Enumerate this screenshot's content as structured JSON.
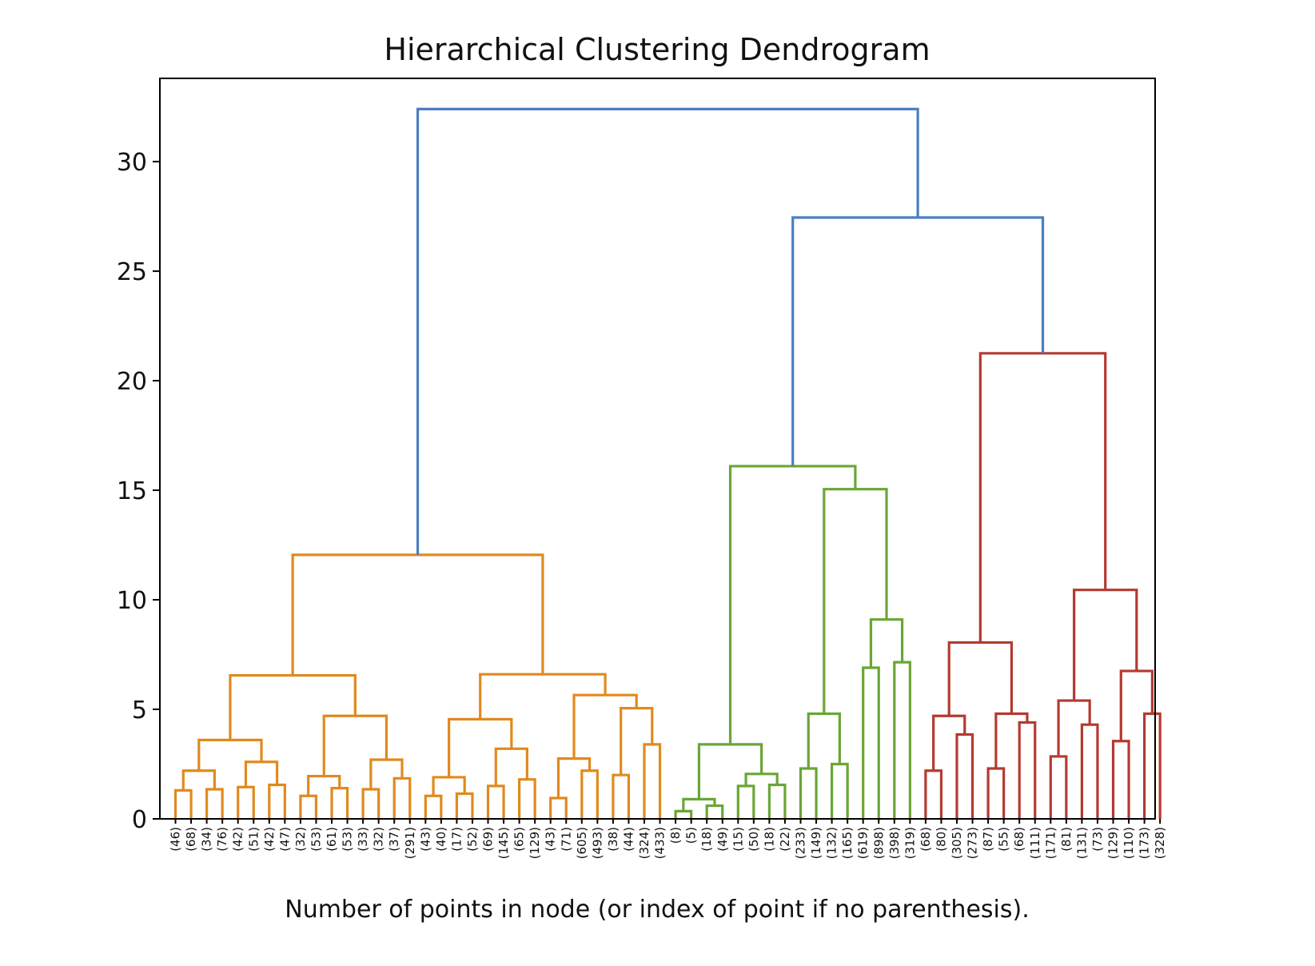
{
  "chart_data": {
    "type": "dendrogram",
    "title": "Hierarchical Clustering Dendrogram",
    "xlabel": "Number of points in node (or index of point if no parenthesis).",
    "ylabel": "",
    "ylim": [
      0,
      33.8
    ],
    "yticks": [
      0,
      5,
      10,
      15,
      20,
      25,
      30
    ],
    "grid": false,
    "colors": {
      "above_threshold": "#4c7ebf",
      "cluster_orange": "#e08a1e",
      "cluster_green": "#6aa635",
      "cluster_red": "#b43a30"
    },
    "leaves": [
      "(46)",
      "(68)",
      "(34)",
      "(76)",
      "(42)",
      "(51)",
      "(42)",
      "(47)",
      "(32)",
      "(53)",
      "(61)",
      "(53)",
      "(33)",
      "(32)",
      "(37)",
      "(291)",
      "(43)",
      "(40)",
      "(17)",
      "(52)",
      "(69)",
      "(145)",
      "(65)",
      "(129)",
      "(43)",
      "(71)",
      "(605)",
      "(493)",
      "(38)",
      "(44)",
      "(324)",
      "(433)",
      "(8)",
      "(5)",
      "(18)",
      "(49)",
      "(15)",
      "(50)",
      "(18)",
      "(22)",
      "(233)",
      "(149)",
      "(132)",
      "(165)",
      "(619)",
      "(898)",
      "(398)",
      "(319)",
      "(68)",
      "(80)",
      "(305)",
      "(273)",
      "(87)",
      "(55)",
      "(68)",
      "(111)",
      "(171)",
      "(81)",
      "(131)",
      "(73)",
      "(129)",
      "(110)",
      "(173)",
      "(328)"
    ],
    "links": [
      {
        "name": "m1",
        "a": "L0",
        "b": "L1",
        "h": 1.3,
        "c": "cluster_orange"
      },
      {
        "name": "m2",
        "a": "L2",
        "b": "L3",
        "h": 1.35,
        "c": "cluster_orange"
      },
      {
        "name": "m3",
        "a": "m1",
        "b": "m2",
        "h": 2.2,
        "c": "cluster_orange"
      },
      {
        "name": "m4",
        "a": "L4",
        "b": "L5",
        "h": 1.45,
        "c": "cluster_orange"
      },
      {
        "name": "m5",
        "a": "L6",
        "b": "L7",
        "h": 1.55,
        "c": "cluster_orange"
      },
      {
        "name": "m6",
        "a": "m4",
        "b": "m5",
        "h": 2.6,
        "c": "cluster_orange"
      },
      {
        "name": "m7",
        "a": "m3",
        "b": "m6",
        "h": 3.6,
        "c": "cluster_orange"
      },
      {
        "name": "m8",
        "a": "L8",
        "b": "L9",
        "h": 1.05,
        "c": "cluster_orange"
      },
      {
        "name": "m9",
        "a": "L10",
        "b": "L11",
        "h": 1.4,
        "c": "cluster_orange"
      },
      {
        "name": "m10",
        "a": "m8",
        "b": "m9",
        "h": 1.95,
        "c": "cluster_orange"
      },
      {
        "name": "m11",
        "a": "L12",
        "b": "L13",
        "h": 1.35,
        "c": "cluster_orange"
      },
      {
        "name": "m12",
        "a": "L14",
        "b": "L15",
        "h": 1.85,
        "c": "cluster_orange"
      },
      {
        "name": "m13",
        "a": "m11",
        "b": "m12",
        "h": 2.7,
        "c": "cluster_orange"
      },
      {
        "name": "m14",
        "a": "m10",
        "b": "m13",
        "h": 4.7,
        "c": "cluster_orange"
      },
      {
        "name": "m15",
        "a": "m7",
        "b": "m14",
        "h": 6.55,
        "c": "cluster_orange"
      },
      {
        "name": "m16",
        "a": "L16",
        "b": "L17",
        "h": 1.05,
        "c": "cluster_orange"
      },
      {
        "name": "m17",
        "a": "L18",
        "b": "L19",
        "h": 1.15,
        "c": "cluster_orange"
      },
      {
        "name": "m18",
        "a": "m16",
        "b": "m17",
        "h": 1.9,
        "c": "cluster_orange"
      },
      {
        "name": "m19",
        "a": "L20",
        "b": "L21",
        "h": 1.5,
        "c": "cluster_orange"
      },
      {
        "name": "m20",
        "a": "L22",
        "b": "L23",
        "h": 1.8,
        "c": "cluster_orange"
      },
      {
        "name": "m21",
        "a": "m19",
        "b": "m20",
        "h": 3.2,
        "c": "cluster_orange"
      },
      {
        "name": "m22",
        "a": "m18",
        "b": "m21",
        "h": 4.55,
        "c": "cluster_orange"
      },
      {
        "name": "m23",
        "a": "L24",
        "b": "L25",
        "h": 0.95,
        "c": "cluster_orange"
      },
      {
        "name": "m24",
        "a": "L26",
        "b": "L27",
        "h": 2.2,
        "c": "cluster_orange"
      },
      {
        "name": "m25",
        "a": "m23",
        "b": "m24",
        "h": 2.75,
        "c": "cluster_orange"
      },
      {
        "name": "m26",
        "a": "L28",
        "b": "L29",
        "h": 2.0,
        "c": "cluster_orange"
      },
      {
        "name": "m27",
        "a": "L30",
        "b": "L31",
        "h": 3.4,
        "c": "cluster_orange"
      },
      {
        "name": "m28",
        "a": "m26",
        "b": "m27",
        "h": 5.05,
        "c": "cluster_orange"
      },
      {
        "name": "m29",
        "a": "m25",
        "b": "m28",
        "h": 5.65,
        "c": "cluster_orange"
      },
      {
        "name": "m30",
        "a": "m22",
        "b": "m29",
        "h": 6.6,
        "c": "cluster_orange"
      },
      {
        "name": "m31",
        "a": "m15",
        "b": "m30",
        "h": 12.05,
        "c": "cluster_orange"
      },
      {
        "name": "m32",
        "a": "L32",
        "b": "L33",
        "h": 0.35,
        "c": "cluster_green"
      },
      {
        "name": "m33",
        "a": "L34",
        "b": "L35",
        "h": 0.6,
        "c": "cluster_green"
      },
      {
        "name": "m34",
        "a": "m32",
        "b": "m33",
        "h": 0.9,
        "c": "cluster_green"
      },
      {
        "name": "m35",
        "a": "L36",
        "b": "L37",
        "h": 1.5,
        "c": "cluster_green"
      },
      {
        "name": "m36",
        "a": "L38",
        "b": "L39",
        "h": 1.55,
        "c": "cluster_green"
      },
      {
        "name": "m37",
        "a": "m35",
        "b": "m36",
        "h": 2.05,
        "c": "cluster_green"
      },
      {
        "name": "m38",
        "a": "m34",
        "b": "m37",
        "h": 3.4,
        "c": "cluster_green"
      },
      {
        "name": "m39",
        "a": "L40",
        "b": "L41",
        "h": 2.3,
        "c": "cluster_green"
      },
      {
        "name": "m40",
        "a": "L42",
        "b": "L43",
        "h": 2.5,
        "c": "cluster_green"
      },
      {
        "name": "m41",
        "a": "m39",
        "b": "m40",
        "h": 4.8,
        "c": "cluster_green"
      },
      {
        "name": "m42",
        "a": "L44",
        "b": "L45",
        "h": 6.9,
        "c": "cluster_green"
      },
      {
        "name": "m43",
        "a": "L46",
        "b": "L47",
        "h": 7.15,
        "c": "cluster_green"
      },
      {
        "name": "m44",
        "a": "m42",
        "b": "m43",
        "h": 9.1,
        "c": "cluster_green"
      },
      {
        "name": "m45",
        "a": "m41",
        "b": "m44",
        "h": 15.05,
        "c": "cluster_green"
      },
      {
        "name": "m46",
        "a": "m38",
        "b": "m45",
        "h": 16.1,
        "c": "cluster_green"
      },
      {
        "name": "m47",
        "a": "L48",
        "b": "L49",
        "h": 2.2,
        "c": "cluster_red"
      },
      {
        "name": "m48",
        "a": "L50",
        "b": "L51",
        "h": 3.85,
        "c": "cluster_red"
      },
      {
        "name": "m49",
        "a": "m47",
        "b": "m48",
        "h": 4.7,
        "c": "cluster_red"
      },
      {
        "name": "m50",
        "a": "L52",
        "b": "L53",
        "h": 2.3,
        "c": "cluster_red"
      },
      {
        "name": "m51",
        "a": "L54",
        "b": "L55",
        "h": 4.4,
        "c": "cluster_red"
      },
      {
        "name": "m52",
        "a": "m50",
        "b": "m51",
        "h": 4.8,
        "c": "cluster_red"
      },
      {
        "name": "m53",
        "a": "m49",
        "b": "m52",
        "h": 8.05,
        "c": "cluster_red"
      },
      {
        "name": "m54",
        "a": "L56",
        "b": "L57",
        "h": 2.85,
        "c": "cluster_red"
      },
      {
        "name": "m55",
        "a": "L58",
        "b": "L59",
        "h": 4.3,
        "c": "cluster_red"
      },
      {
        "name": "m56",
        "a": "m54",
        "b": "m55",
        "h": 5.4,
        "c": "cluster_red"
      },
      {
        "name": "m57",
        "a": "L60",
        "b": "L61",
        "h": 3.55,
        "c": "cluster_red"
      },
      {
        "name": "m58",
        "a": "L62",
        "b": "L63",
        "h": 4.8,
        "c": "cluster_red"
      },
      {
        "name": "m59",
        "a": "m57",
        "b": "m58",
        "h": 6.75,
        "c": "cluster_red"
      },
      {
        "name": "m60",
        "a": "m56",
        "b": "m59",
        "h": 10.45,
        "c": "cluster_red"
      },
      {
        "name": "m61",
        "a": "m53",
        "b": "m60",
        "h": 21.25,
        "c": "cluster_red"
      },
      {
        "name": "m62",
        "a": "m46",
        "b": "m61",
        "h": 27.45,
        "c": "above_threshold"
      },
      {
        "name": "m63",
        "a": "m31",
        "b": "m62",
        "h": 32.4,
        "c": "above_threshold"
      }
    ]
  }
}
